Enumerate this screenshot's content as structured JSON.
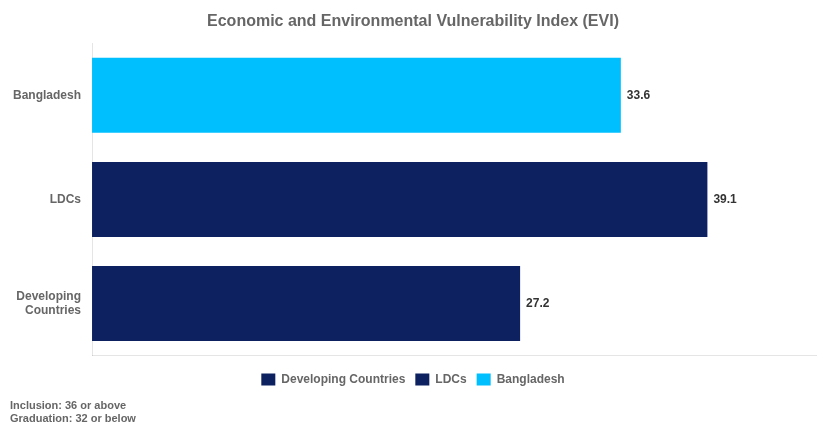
{
  "chart_data": {
    "type": "bar",
    "orientation": "horizontal",
    "title": "Economic and Environmental Vulnerability Index (EVI)",
    "categories": [
      "Bangladesh",
      "LDCs",
      "Developing\nCountries"
    ],
    "series": [
      {
        "name": "Developing Countries",
        "color": "#0D2060",
        "values": [
          null,
          null,
          27.2
        ]
      },
      {
        "name": "LDCs",
        "color": "#0D2060",
        "values": [
          null,
          39.1,
          null
        ]
      },
      {
        "name": "Bangladesh",
        "color": "#00BFFF",
        "values": [
          33.6,
          null,
          null
        ]
      }
    ],
    "xlim": [
      0,
      46
    ],
    "data_labels": true,
    "tick_labels": "y",
    "grid": false,
    "legend": "bottom",
    "annotations": [
      "Inclusion: 36 or above",
      "Graduation: 32 or below"
    ]
  }
}
